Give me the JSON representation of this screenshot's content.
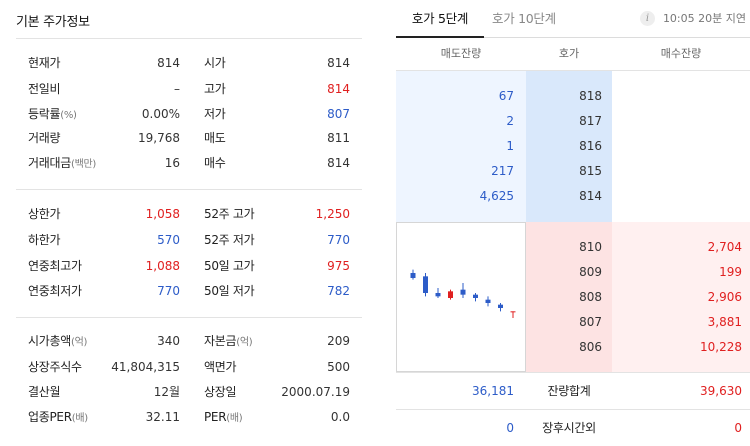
{
  "left_panel": {
    "title": "기본 주가정보",
    "section1": [
      {
        "l1": "현재가",
        "u1": "",
        "v1": "814",
        "l2": "시가",
        "u2": "",
        "v2": "814"
      },
      {
        "l1": "전일비",
        "u1": "",
        "v1": "–",
        "l2": "고가",
        "u2": "",
        "v2": "814"
      },
      {
        "l1": "등락률",
        "u1": "(%)",
        "v1": "0.00%",
        "l2": "저가",
        "u2": "",
        "v2": "807"
      },
      {
        "l1": "거래량",
        "u1": "",
        "v1": "19,768",
        "l2": "매도",
        "u2": "",
        "v2": "811"
      },
      {
        "l1": "거래대금",
        "u1": "(백만)",
        "v1": "16",
        "l2": "매수",
        "u2": "",
        "v2": "814"
      }
    ],
    "section2": [
      {
        "l1": "상한가",
        "u1": "",
        "v1": "1,058",
        "l2": "52주 고가",
        "u2": "",
        "v2": "1,250"
      },
      {
        "l1": "하한가",
        "u1": "",
        "v1": "570",
        "l2": "52주 저가",
        "u2": "",
        "v2": "770"
      },
      {
        "l1": "연중최고가",
        "u1": "",
        "v1": "1,088",
        "l2": "50일 고가",
        "u2": "",
        "v2": "975"
      },
      {
        "l1": "연중최저가",
        "u1": "",
        "v1": "770",
        "l2": "50일 저가",
        "u2": "",
        "v2": "782"
      }
    ],
    "section3": [
      {
        "l1": "시가총액",
        "u1": "(억)",
        "v1": "340",
        "l2": "자본금",
        "u2": "(억)",
        "v2": "209"
      },
      {
        "l1": "상장주식수",
        "u1": "",
        "v1": "41,804,315",
        "l2": "액면가",
        "u2": "",
        "v2": "500"
      },
      {
        "l1": "결산월",
        "u1": "",
        "v1": "12월",
        "l2": "상장일",
        "u2": "",
        "v2": "2000.07.19"
      },
      {
        "l1": "업종PER",
        "u1": "(배)",
        "v1": "32.11",
        "l2": "PER",
        "u2": "(배)",
        "v2": "0.0"
      }
    ]
  },
  "orderbook": {
    "tabs": [
      "호가 5단계",
      "호가 10단계"
    ],
    "info_icon_glyph": "i",
    "time_note": "10:05 20분 지연",
    "headers": {
      "sell": "매도잔량",
      "price": "호가",
      "buy": "매수잔량"
    },
    "asks": [
      {
        "qty": "67",
        "price": "818"
      },
      {
        "qty": "2",
        "price": "817"
      },
      {
        "qty": "1",
        "price": "816"
      },
      {
        "qty": "217",
        "price": "815"
      },
      {
        "qty": "4,625",
        "price": "814"
      }
    ],
    "bids": [
      {
        "price": "810",
        "qty": "2,704"
      },
      {
        "price": "809",
        "qty": "199"
      },
      {
        "price": "808",
        "qty": "2,906"
      },
      {
        "price": "807",
        "qty": "3,881"
      },
      {
        "price": "806",
        "qty": "10,228"
      }
    ],
    "totals": {
      "sell": "36,181",
      "label": "잔량합계",
      "buy": "39,630"
    },
    "after_hours": {
      "sell": "0",
      "label": "장후시간외",
      "buy": "0"
    }
  },
  "mini_chart": {
    "icon": "candlestick-chart",
    "colors": {
      "up": "#e02020",
      "down": "#2d5cc8"
    },
    "candles": [
      {
        "o": 830,
        "h": 832,
        "l": 826,
        "c": 827
      },
      {
        "o": 828,
        "h": 830,
        "l": 816,
        "c": 818
      },
      {
        "o": 818,
        "h": 821,
        "l": 815,
        "c": 816
      },
      {
        "o": 815,
        "h": 820,
        "l": 814,
        "c": 819
      },
      {
        "o": 820,
        "h": 824,
        "l": 815,
        "c": 817
      },
      {
        "o": 817,
        "h": 818,
        "l": 813,
        "c": 815
      },
      {
        "o": 814,
        "h": 816,
        "l": 810,
        "c": 812
      },
      {
        "o": 811,
        "h": 812,
        "l": 807,
        "c": 809
      },
      {
        "o": 807,
        "h": 807,
        "l": 803,
        "c": 807
      }
    ],
    "range": [
      800,
      836
    ]
  }
}
